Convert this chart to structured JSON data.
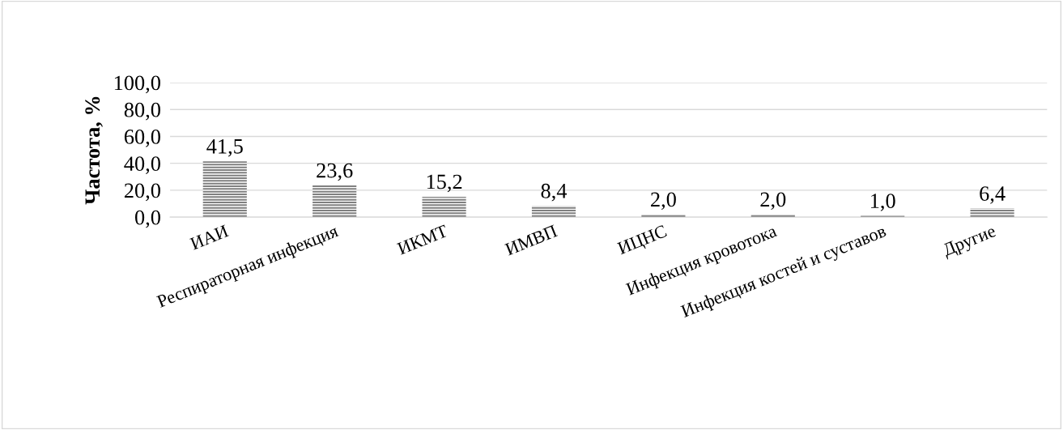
{
  "chart_data": {
    "type": "bar",
    "ylabel": "Частота, %",
    "categories": [
      "ИАИ",
      "Респираторная инфекция",
      "ИКМТ",
      "ИМВП",
      "ИЦНС",
      "Инфекция кровотока",
      "Инфекция костей и суставов",
      "Другие"
    ],
    "values": [
      41.5,
      23.6,
      15.2,
      8.4,
      2.0,
      2.0,
      1.0,
      6.4
    ],
    "value_labels": [
      "41,5",
      "23,6",
      "15,2",
      "8,4",
      "2,0",
      "2,0",
      "1,0",
      "6,4"
    ],
    "color": "#808080",
    "ylim": [
      0,
      100
    ],
    "yticks": [
      {
        "value": 0,
        "label": "0,0"
      },
      {
        "value": 20,
        "label": "20,0"
      },
      {
        "value": 40,
        "label": "40,0"
      },
      {
        "value": 60,
        "label": "60,0"
      },
      {
        "value": 80,
        "label": "80,0"
      },
      {
        "value": 100,
        "label": "100,0"
      }
    ],
    "grid": "y"
  }
}
